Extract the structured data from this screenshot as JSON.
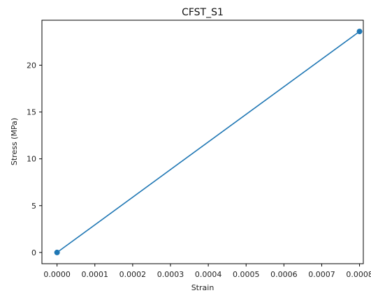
{
  "chart_data": {
    "type": "line",
    "title": "CFST_S1",
    "xlabel": "Strain",
    "ylabel": "Stress (MPa)",
    "x": [
      0.0,
      0.0008
    ],
    "series": [
      {
        "values": [
          0.0,
          23.6
        ],
        "color": "#1f77b4",
        "marker": "circle"
      }
    ],
    "xlim": [
      -4e-05,
      0.00081
    ],
    "ylim": [
      -1.2,
      24.8
    ],
    "xticks": [
      0.0,
      0.0001,
      0.0002,
      0.0003,
      0.0004,
      0.0005,
      0.0006,
      0.0007,
      0.0008
    ],
    "xtick_labels": [
      "0.0000",
      "0.0001",
      "0.0002",
      "0.0003",
      "0.0004",
      "0.0005",
      "0.0006",
      "0.0007",
      "0.0008"
    ],
    "yticks": [
      0,
      5,
      10,
      15,
      20
    ],
    "ytick_labels": [
      "0",
      "5",
      "10",
      "15",
      "20"
    ],
    "grid": false,
    "legend": "none"
  }
}
